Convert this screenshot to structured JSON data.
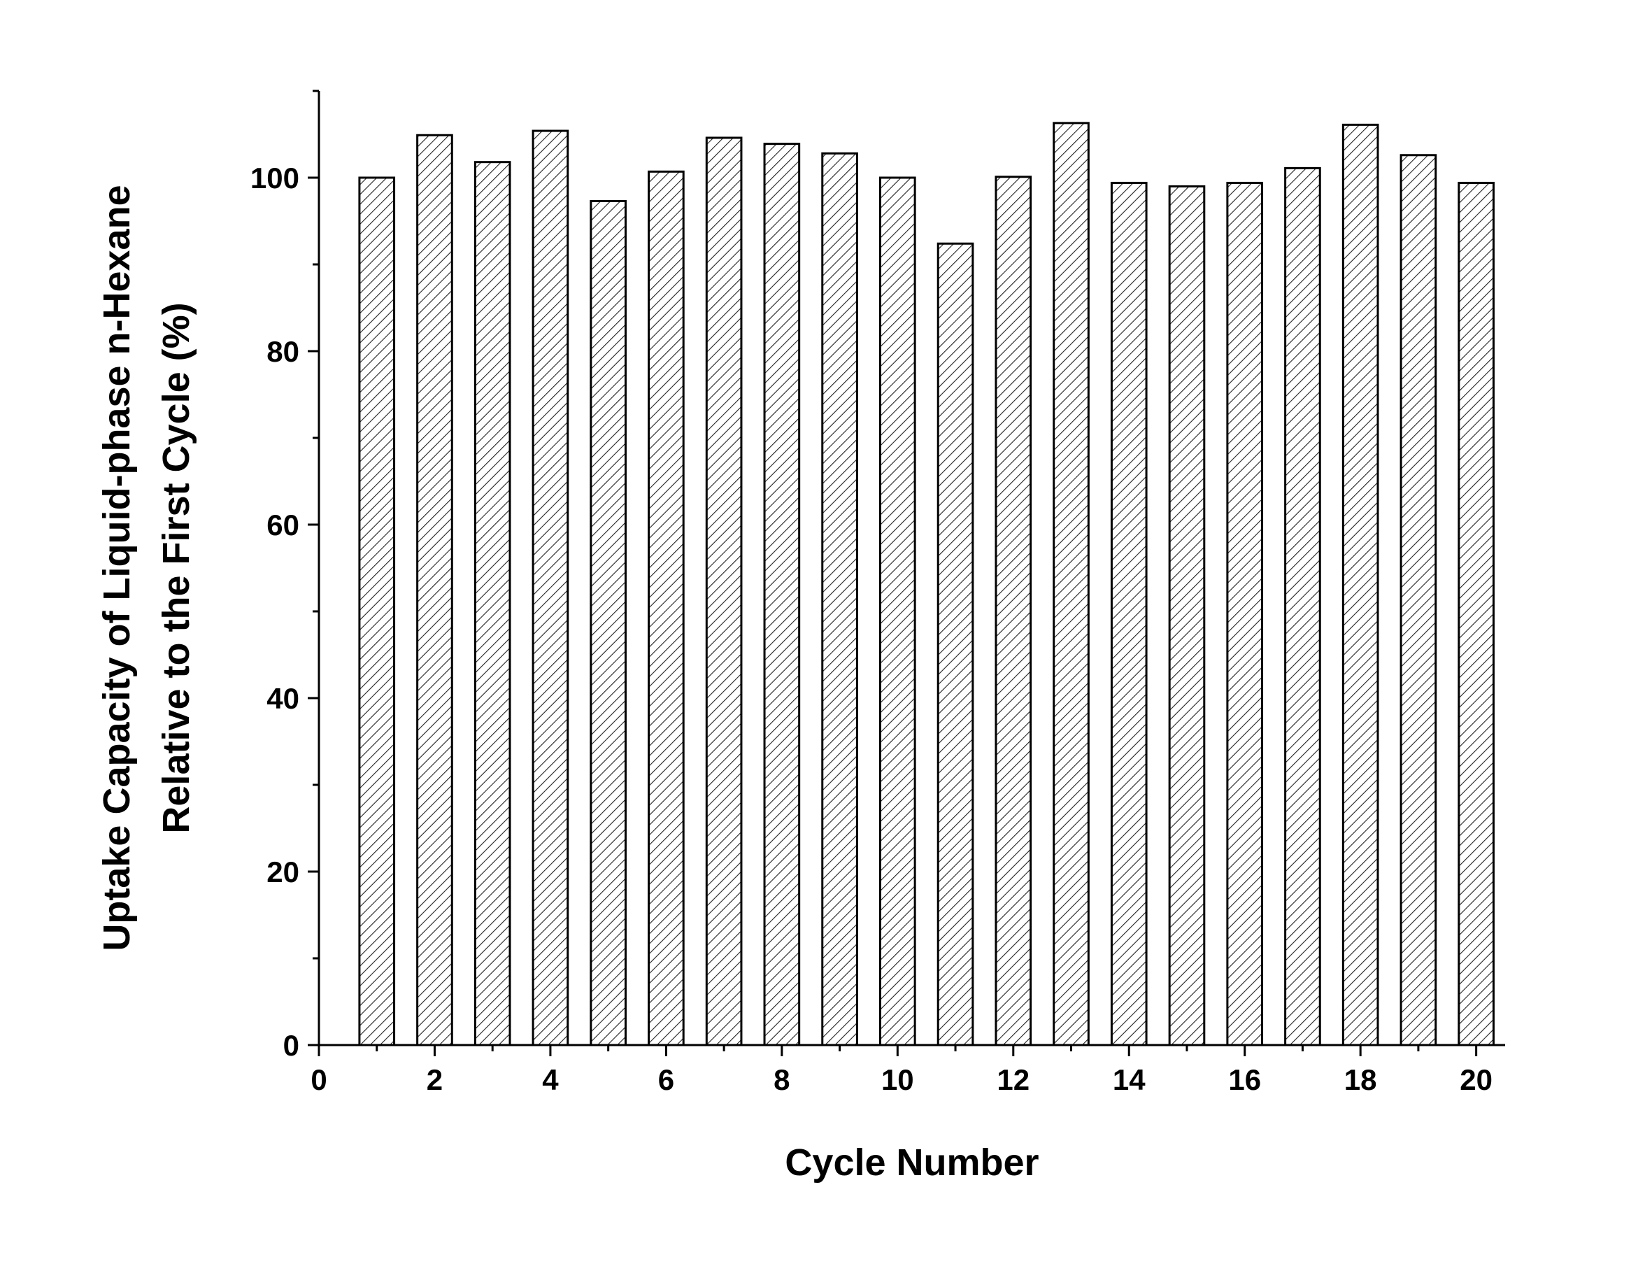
{
  "chart_data": {
    "type": "bar",
    "xlabel": "Cycle Number",
    "ylabel": [
      "Uptake Capacity of Liquid-phase n-Hexane",
      "Relative to the First Cycle (%)"
    ],
    "x": [
      1,
      2,
      3,
      4,
      5,
      6,
      7,
      8,
      9,
      10,
      11,
      12,
      13,
      14,
      15,
      16,
      17,
      18,
      19,
      20
    ],
    "values": [
      100,
      104.9,
      101.8,
      105.4,
      97.3,
      100.7,
      104.6,
      103.9,
      102.8,
      100,
      92.4,
      100.1,
      106.3,
      99.4,
      99.0,
      99.4,
      101.1,
      106.1,
      102.6,
      99.4
    ],
    "bar_width": 0.6,
    "color": "#000000",
    "hatch": "diagonal",
    "xlim": [
      0,
      20.5
    ],
    "xticks": [
      0,
      2,
      4,
      6,
      8,
      10,
      12,
      14,
      16,
      18,
      20
    ],
    "xminorticks": [
      1,
      3,
      5,
      7,
      9,
      11,
      13,
      15,
      17,
      19
    ],
    "ylim": [
      0,
      110
    ],
    "yticks": [
      0,
      20,
      40,
      60,
      80,
      100
    ],
    "yminorticks": [
      10,
      30,
      50,
      70,
      90,
      110
    ],
    "grid": false
  }
}
